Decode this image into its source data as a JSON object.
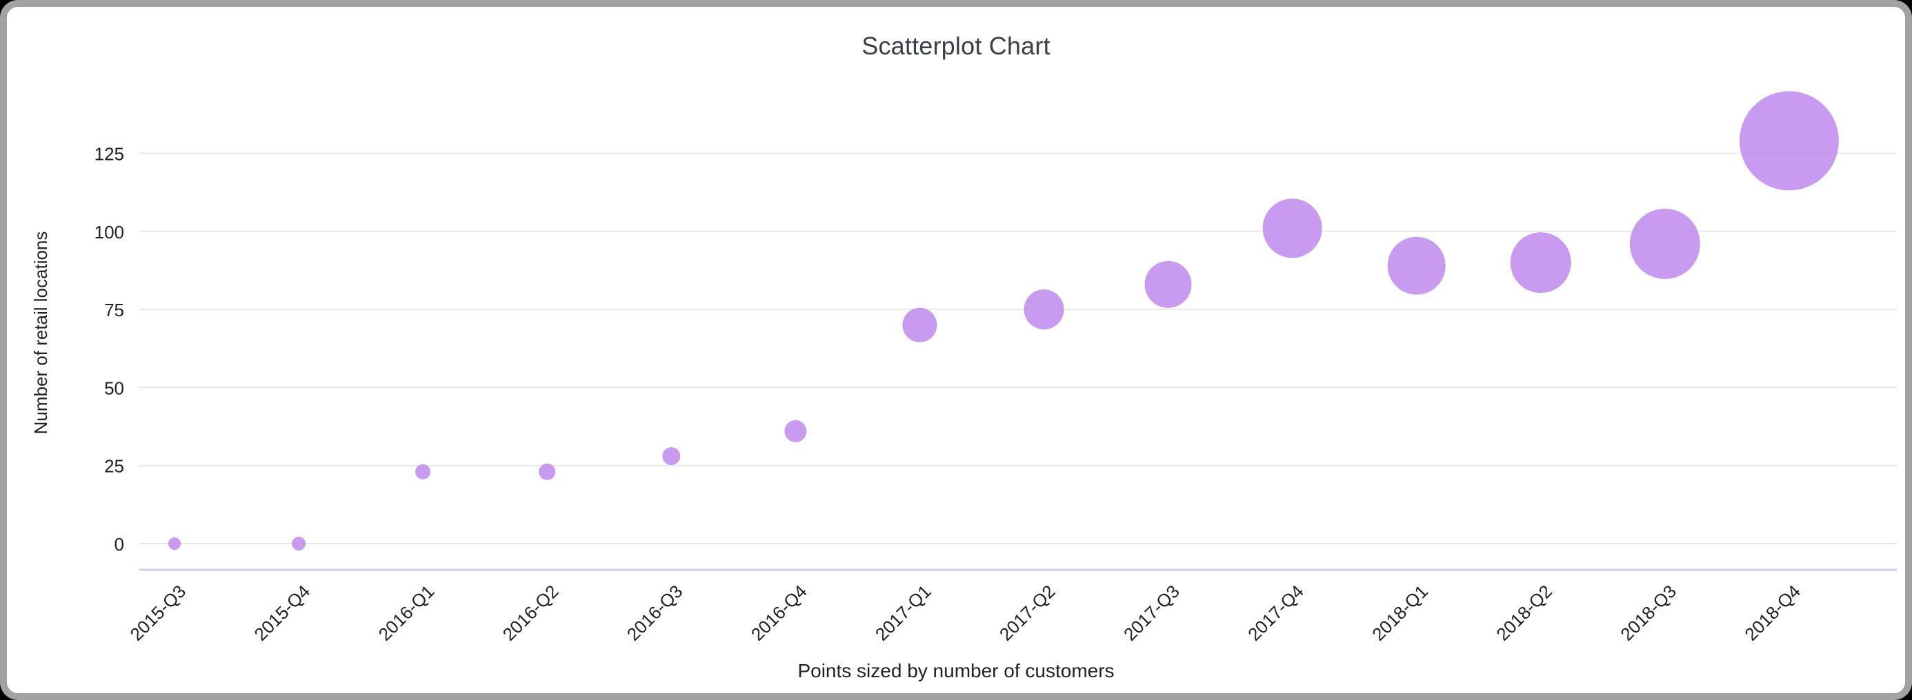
{
  "page": {
    "background_color": "#000000",
    "card_background": "#ffffff",
    "card_border_color": "#a2a2a2"
  },
  "chart_data": {
    "type": "scatter",
    "title": "Scatterplot Chart",
    "subtitle": "",
    "xlabel": "Points sized by number of customers",
    "ylabel": "Number of retail locations",
    "caption": "Points sized by number of customers",
    "categories": [
      "2015-Q3",
      "2015-Q4",
      "2016-Q1",
      "2016-Q2",
      "2016-Q3",
      "2016-Q4",
      "2017-Q1",
      "2017-Q2",
      "2017-Q3",
      "2017-Q4",
      "2018-Q1",
      "2018-Q2",
      "2018-Q3",
      "2018-Q4"
    ],
    "series": [
      {
        "name": "Number of retail locations",
        "values": [
          0,
          0,
          23,
          23,
          28,
          36,
          70,
          75,
          83,
          101,
          89,
          90,
          96,
          129
        ],
        "point_radius_px": [
          9,
          10,
          11,
          12,
          13,
          16,
          25,
          29,
          34,
          43,
          42,
          44,
          51,
          72
        ],
        "size_encodes": "number of customers"
      }
    ],
    "yticks": [
      0,
      25,
      50,
      75,
      100,
      125
    ],
    "ylim": [
      0,
      148
    ],
    "grid": true,
    "legend_position": "none",
    "x_tick_rotation_deg": -45,
    "colors": {
      "point_fill": "#be88ed",
      "point_rendered": "#c89af0",
      "gridline": "#e8e8e8",
      "baseline": "#c7d2e8",
      "tick_text": "#202124",
      "title_text": "#3a4045"
    }
  }
}
